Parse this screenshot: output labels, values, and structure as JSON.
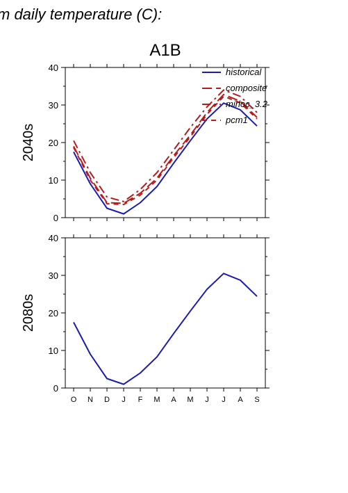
{
  "page_title": "m daily temperature (C):",
  "panel_title": "A1B",
  "colors": {
    "historical": "#1a1ab8",
    "projection": "#b81a1a"
  },
  "chart_data": [
    {
      "type": "line",
      "row_label": "2040s",
      "ylim": [
        0,
        40
      ],
      "yticks": [
        "0",
        "10",
        "20",
        "30",
        "40"
      ],
      "categories": [
        "O",
        "N",
        "D",
        "J",
        "F",
        "M",
        "A",
        "M",
        "J",
        "J",
        "A",
        "S"
      ],
      "legend": "top-right",
      "series": [
        {
          "name": "historical",
          "style": "solid",
          "values": [
            17.5,
            9,
            2.5,
            1,
            4,
            8.3,
            14.5,
            20.5,
            26.3,
            30.5,
            28.7,
            24.4
          ]
        },
        {
          "name": "composite",
          "style": "longdash",
          "values": [
            19,
            10.5,
            4,
            3.8,
            6.5,
            10.5,
            16.5,
            22,
            28,
            32.8,
            31,
            26.7
          ]
        },
        {
          "name": "mirloc_3.2",
          "style": "dashdot",
          "values": [
            20.5,
            12,
            5.5,
            4.3,
            7.5,
            12,
            18,
            24,
            29.5,
            34,
            32.3,
            28
          ]
        },
        {
          "name": "pcm1",
          "style": "dash",
          "values": [
            18.7,
            10,
            3.7,
            3.5,
            6,
            10,
            16,
            21.5,
            27.5,
            32.3,
            30.6,
            26.3
          ]
        }
      ]
    },
    {
      "type": "line",
      "row_label": "2080s",
      "ylim": [
        0,
        40
      ],
      "yticks": [
        "0",
        "10",
        "20",
        "30",
        "40"
      ],
      "categories": [
        "O",
        "N",
        "D",
        "J",
        "F",
        "M",
        "A",
        "M",
        "J",
        "J",
        "A",
        "S"
      ],
      "series": [
        {
          "name": "historical",
          "style": "solid",
          "values": [
            17.5,
            9,
            2.5,
            1,
            4,
            8.3,
            14.5,
            20.5,
            26.3,
            30.5,
            28.7,
            24.4
          ]
        }
      ]
    }
  ]
}
